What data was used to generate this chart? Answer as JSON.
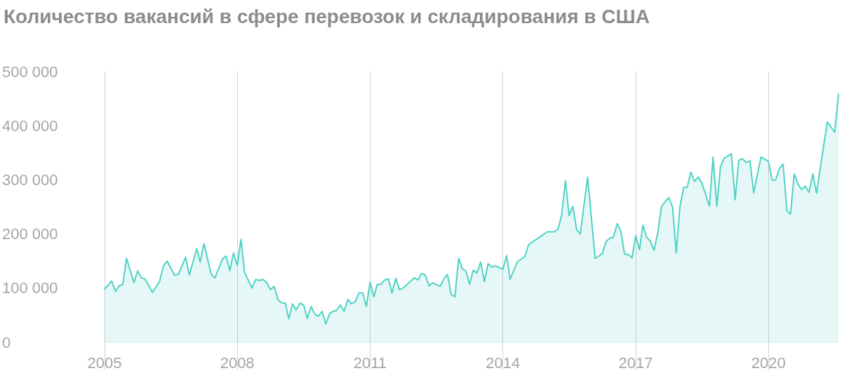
{
  "chart_data": {
    "type": "area",
    "title": "Количество вакансий в сфере перевозок и складирования в США",
    "x": [
      "2005-01",
      "2005-03",
      "2005-04",
      "2005-05",
      "2005-06",
      "2005-07",
      "2005-09",
      "2005-10",
      "2005-11",
      "2005-12",
      "2006-02",
      "2006-03",
      "2006-04",
      "2006-05",
      "2006-06",
      "2006-07",
      "2006-08",
      "2006-09",
      "2006-11",
      "2006-12",
      "2007-02",
      "2007-03",
      "2007-04",
      "2007-06",
      "2007-07",
      "2007-09",
      "2007-10",
      "2007-11",
      "2007-12",
      "2008-01",
      "2008-02",
      "2008-03",
      "2008-05",
      "2008-06",
      "2008-07",
      "2008-08",
      "2008-09",
      "2008-10",
      "2008-11",
      "2008-12",
      "2009-01",
      "2009-02",
      "2009-03",
      "2009-04",
      "2009-05",
      "2009-06",
      "2009-07",
      "2009-08",
      "2009-09",
      "2009-10",
      "2009-11",
      "2009-12",
      "2010-01",
      "2010-02",
      "2010-03",
      "2010-04",
      "2010-05",
      "2010-06",
      "2010-07",
      "2010-08",
      "2010-09",
      "2010-10",
      "2010-11",
      "2010-12",
      "2011-01",
      "2011-02",
      "2011-03",
      "2011-04",
      "2011-05",
      "2011-06",
      "2011-07",
      "2011-08",
      "2011-09",
      "2011-10",
      "2012-01",
      "2012-02",
      "2012-03",
      "2012-04",
      "2012-05",
      "2012-06",
      "2012-08",
      "2012-09",
      "2012-10",
      "2012-11",
      "2012-12",
      "2013-01",
      "2013-02",
      "2013-03",
      "2013-04",
      "2013-05",
      "2013-06",
      "2013-07",
      "2013-08",
      "2013-09",
      "2013-10",
      "2013-11",
      "2014-01",
      "2014-02",
      "2014-03",
      "2014-05",
      "2014-07",
      "2014-08",
      "2015-01",
      "2015-03",
      "2015-04",
      "2015-05",
      "2015-06",
      "2015-07",
      "2015-08",
      "2015-09",
      "2015-10",
      "2015-12",
      "2016-02",
      "2016-03",
      "2016-04",
      "2016-05",
      "2016-06",
      "2016-07",
      "2016-08",
      "2016-09",
      "2016-10",
      "2016-11",
      "2016-12",
      "2017-01",
      "2017-02",
      "2017-03",
      "2017-04",
      "2017-05",
      "2017-06",
      "2017-07",
      "2017-08",
      "2017-09",
      "2017-10",
      "2017-11",
      "2017-12",
      "2018-01",
      "2018-02",
      "2018-03",
      "2018-04",
      "2018-05",
      "2018-06",
      "2018-07",
      "2018-09",
      "2018-10",
      "2018-11",
      "2018-12",
      "2019-01",
      "2019-03",
      "2019-04",
      "2019-05",
      "2019-06",
      "2019-07",
      "2019-08",
      "2019-09",
      "2019-11",
      "2019-12",
      "2020-01",
      "2020-02",
      "2020-03",
      "2020-04",
      "2020-05",
      "2020-06",
      "2020-07",
      "2020-08",
      "2020-09",
      "2020-10",
      "2020-11",
      "2020-12",
      "2021-01",
      "2021-02",
      "2021-04",
      "2021-05",
      "2021-07",
      "2021-08"
    ],
    "series": [
      {
        "color": "#4fd2c6",
        "values": [
          98000,
          113000,
          94000,
          104000,
          107000,
          155000,
          110000,
          132000,
          119000,
          117000,
          92000,
          102000,
          113000,
          141000,
          150000,
          137000,
          124000,
          125000,
          157000,
          124000,
          173000,
          148000,
          182000,
          125000,
          119000,
          154000,
          159000,
          132000,
          165000,
          142000,
          190000,
          129000,
          100000,
          116000,
          114000,
          116000,
          110000,
          97000,
          103000,
          79000,
          73000,
          72000,
          43000,
          71000,
          60000,
          72000,
          69000,
          44000,
          66000,
          52000,
          48000,
          57000,
          34000,
          53000,
          57000,
          59000,
          69000,
          57000,
          79000,
          71000,
          75000,
          91000,
          91000,
          66000,
          111000,
          84000,
          107000,
          107000,
          115000,
          117000,
          91000,
          118000,
          97000,
          100000,
          119000,
          115000,
          127000,
          124000,
          104000,
          110000,
          103000,
          117000,
          125000,
          88000,
          84000,
          155000,
          135000,
          132000,
          107000,
          133000,
          128000,
          148000,
          112000,
          145000,
          139000,
          141000,
          135000,
          160000,
          116000,
          149000,
          158000,
          180000,
          204000,
          204000,
          209000,
          235000,
          298000,
          234000,
          251000,
          208000,
          200000,
          305000,
          155000,
          159000,
          164000,
          186000,
          192000,
          194000,
          219000,
          204000,
          163000,
          162000,
          156000,
          197000,
          171000,
          216000,
          194000,
          187000,
          170000,
          201000,
          250000,
          260000,
          267000,
          250000,
          165000,
          251000,
          286000,
          286000,
          314000,
          297000,
          305000,
          294000,
          251000,
          342000,
          251000,
          324000,
          340000,
          348000,
          263000,
          336000,
          339000,
          332000,
          335000,
          276000,
          342000,
          338000,
          334000,
          299000,
          300000,
          321000,
          329000,
          243000,
          237000,
          311000,
          292000,
          282000,
          288000,
          277000,
          311000,
          275000,
          364000,
          407000,
          388000,
          458000
        ]
      }
    ],
    "xlim": [
      "2005-01",
      "2021-08"
    ],
    "xticks": [
      {
        "value": "2005-01",
        "label": "2005"
      },
      {
        "value": "2008-01",
        "label": "2008"
      },
      {
        "value": "2011-01",
        "label": "2011"
      },
      {
        "value": "2014-01",
        "label": "2014"
      },
      {
        "value": "2017-01",
        "label": "2017"
      },
      {
        "value": "2020-01",
        "label": "2020"
      }
    ],
    "ylim": [
      0,
      500000
    ],
    "yticks": [
      0,
      {
        "value": 100000,
        "label": "100 000"
      },
      {
        "value": 200000,
        "label": "200 000"
      },
      {
        "value": 300000,
        "label": "300 000"
      },
      {
        "value": 400000,
        "label": "400 000"
      },
      {
        "value": 500000,
        "label": "500 000"
      }
    ],
    "grid": "x",
    "marker": "none",
    "line_style": "solid"
  }
}
